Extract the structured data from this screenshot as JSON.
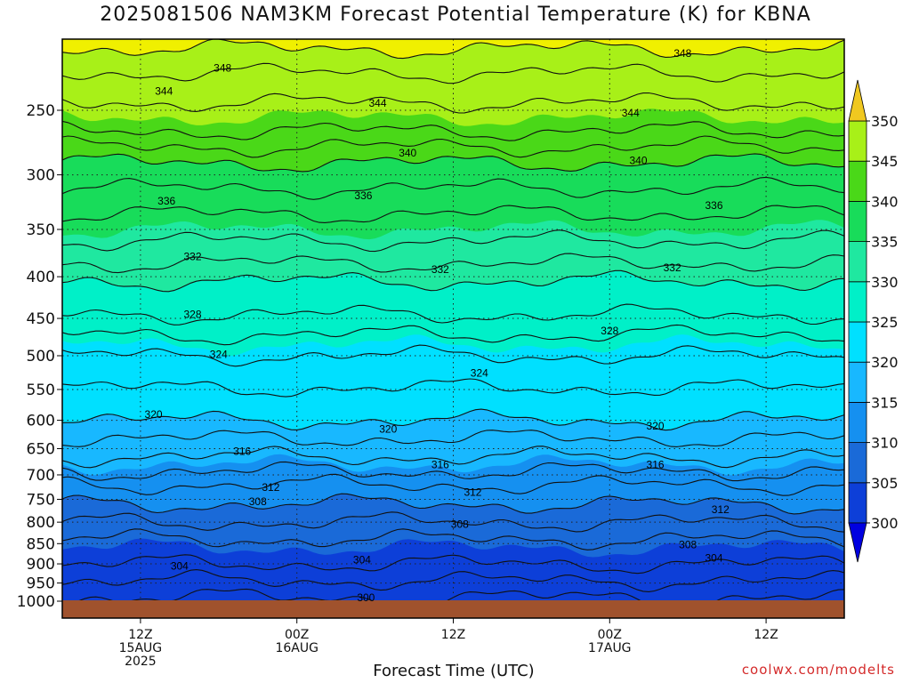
{
  "title": "2025081506 NAM3KM Forecast Potential Temperature (K) for KBNA",
  "watermark": "coolwx.com/modelts",
  "chart_data": {
    "type": "heatmap",
    "title": "2025081506 NAM3KM Forecast Potential Temperature (K) for KBNA",
    "xlabel": "Forecast Time (UTC)",
    "ylabel": "",
    "y_scale": "log",
    "y_axis_inverted": true,
    "y_ticks": [
      250,
      300,
      350,
      400,
      450,
      500,
      550,
      600,
      650,
      700,
      750,
      800,
      850,
      900,
      950,
      1000
    ],
    "x_ticks": [
      {
        "hour": 6,
        "lines": [
          "12Z",
          "15AUG",
          "2025"
        ]
      },
      {
        "hour": 18,
        "lines": [
          "00Z",
          "16AUG"
        ]
      },
      {
        "hour": 30,
        "lines": [
          "12Z"
        ]
      },
      {
        "hour": 42,
        "lines": [
          "00Z",
          "17AUG"
        ]
      },
      {
        "hour": 54,
        "lines": [
          "12Z"
        ]
      }
    ],
    "x_range_hours": [
      0,
      60
    ],
    "y_range": [
      200,
      1015
    ],
    "colorbar_levels": [
      300,
      305,
      310,
      315,
      320,
      325,
      330,
      335,
      340,
      345,
      350
    ],
    "colorbar_colors": [
      "#0d3fd8",
      "#1a6ad8",
      "#1590f0",
      "#18b8ff",
      "#00e0ff",
      "#00f0c8",
      "#1fe8a0",
      "#18dc5a",
      "#4ad818",
      "#a8f018",
      "#f0f000",
      "#f0c820",
      "#0000e0"
    ],
    "colorbar_extend": "both",
    "grid": "dotted",
    "isotherm_profile": [
      {
        "theta": 350,
        "pressure": 210
      },
      {
        "theta": 348,
        "pressure": 225
      },
      {
        "theta": 345,
        "pressure": 255
      },
      {
        "theta": 344,
        "pressure": 265
      },
      {
        "theta": 340,
        "pressure": 290
      },
      {
        "theta": 336,
        "pressure": 335
      },
      {
        "theta": 335,
        "pressure": 350
      },
      {
        "theta": 332,
        "pressure": 385
      },
      {
        "theta": 330,
        "pressure": 405
      },
      {
        "theta": 328,
        "pressure": 445
      },
      {
        "theta": 325,
        "pressure": 485
      },
      {
        "theta": 324,
        "pressure": 500
      },
      {
        "theta": 320,
        "pressure": 600
      },
      {
        "theta": 316,
        "pressure": 665
      },
      {
        "theta": 315,
        "pressure": 680
      },
      {
        "theta": 312,
        "pressure": 720
      },
      {
        "theta": 310,
        "pressure": 760
      },
      {
        "theta": 308,
        "pressure": 800
      },
      {
        "theta": 305,
        "pressure": 860
      },
      {
        "theta": 304,
        "pressure": 900
      },
      {
        "theta": 300,
        "pressure": 990
      }
    ],
    "contour_labels": [
      {
        "text": "348",
        "hour": 12.3,
        "pressure": 222
      },
      {
        "text": "348",
        "hour": 47.6,
        "pressure": 213
      },
      {
        "text": "344",
        "hour": 7.8,
        "pressure": 237
      },
      {
        "text": "344",
        "hour": 24.2,
        "pressure": 245
      },
      {
        "text": "344",
        "hour": 43.6,
        "pressure": 252
      },
      {
        "text": "340",
        "hour": 26.5,
        "pressure": 282
      },
      {
        "text": "340",
        "hour": 44.2,
        "pressure": 288
      },
      {
        "text": "336",
        "hour": 8.0,
        "pressure": 323
      },
      {
        "text": "336",
        "hour": 23.1,
        "pressure": 318
      },
      {
        "text": "336",
        "hour": 50.0,
        "pressure": 327
      },
      {
        "text": "332",
        "hour": 10.0,
        "pressure": 378
      },
      {
        "text": "332",
        "hour": 29.0,
        "pressure": 392
      },
      {
        "text": "332",
        "hour": 46.8,
        "pressure": 390
      },
      {
        "text": "328",
        "hour": 10.0,
        "pressure": 445
      },
      {
        "text": "328",
        "hour": 42.0,
        "pressure": 466
      },
      {
        "text": "324",
        "hour": 12.0,
        "pressure": 498
      },
      {
        "text": "324",
        "hour": 32.0,
        "pressure": 525
      },
      {
        "text": "320",
        "hour": 7.0,
        "pressure": 590
      },
      {
        "text": "320",
        "hour": 25.0,
        "pressure": 615
      },
      {
        "text": "320",
        "hour": 45.5,
        "pressure": 610
      },
      {
        "text": "316",
        "hour": 13.8,
        "pressure": 655
      },
      {
        "text": "316",
        "hour": 29.0,
        "pressure": 680
      },
      {
        "text": "316",
        "hour": 45.5,
        "pressure": 680
      },
      {
        "text": "312",
        "hour": 16.0,
        "pressure": 725
      },
      {
        "text": "312",
        "hour": 31.5,
        "pressure": 735
      },
      {
        "text": "312",
        "hour": 50.5,
        "pressure": 772
      },
      {
        "text": "308",
        "hour": 15.0,
        "pressure": 755
      },
      {
        "text": "308",
        "hour": 30.5,
        "pressure": 805
      },
      {
        "text": "308",
        "hour": 48.0,
        "pressure": 853
      },
      {
        "text": "304",
        "hour": 9.0,
        "pressure": 905
      },
      {
        "text": "304",
        "hour": 23.0,
        "pressure": 890
      },
      {
        "text": "304",
        "hour": 50.0,
        "pressure": 885
      },
      {
        "text": "300",
        "hour": 23.3,
        "pressure": 990
      }
    ]
  }
}
